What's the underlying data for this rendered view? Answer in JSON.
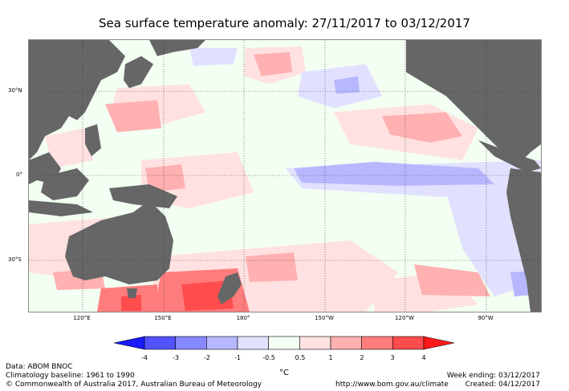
{
  "title": "Sea surface temperature anomaly: 27/11/2017 to 03/12/2017",
  "map": {
    "lon_ticks": [
      "120°E",
      "150°E",
      "180°",
      "150°W",
      "120°W",
      "90°W"
    ],
    "lat_ticks": [
      "30°N",
      "0°",
      "30°S"
    ],
    "colors": {
      "land": "#666666",
      "ocean_neutral": "#f2fff2"
    }
  },
  "colorbar": {
    "labels": [
      "-4",
      "-3",
      "-2",
      "-1",
      "-0.5",
      "0.5",
      "1",
      "2",
      "3",
      "4"
    ],
    "colors": [
      "#1a1aff",
      "#5252ff",
      "#8787ff",
      "#b7b7ff",
      "#e1e1ff",
      "#f2fff2",
      "#ffe1e1",
      "#ffb0b0",
      "#ff7c7c",
      "#ff4c4c",
      "#ff1a1a"
    ],
    "unit": "°C"
  },
  "footer": {
    "data_source": "Data: ABOM BNOC",
    "baseline": "Climatology baseline: 1961 to 1990",
    "copyright": "© Commonwealth of Australia 2017, Australian Bureau of Meteorology",
    "url": "http://www.bom.gov.au/climate",
    "week_ending": "Week ending: 03/12/2017",
    "created": "Created: 04/12/2017"
  }
}
